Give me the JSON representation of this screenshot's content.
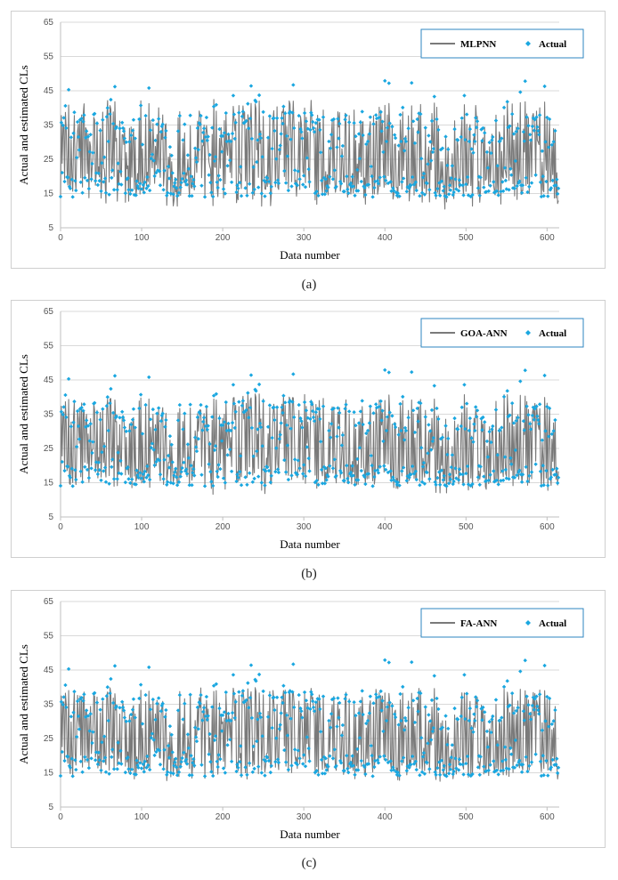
{
  "captions": [
    "(a)",
    "(b)",
    "(c)"
  ],
  "colors": {
    "model_line": "#7a7a7a",
    "actual_points": "#1aa7e0",
    "grid": "#d9d9d9",
    "legend_border": "#2e86c1"
  },
  "chart_data": [
    {
      "type": "line",
      "xlabel": "Data number",
      "ylabel": "Actual and estimated CLs",
      "xlim": [
        0,
        615
      ],
      "ylim": [
        5,
        65
      ],
      "xticks": [
        0,
        100,
        200,
        300,
        400,
        500,
        600
      ],
      "yticks": [
        5,
        15,
        25,
        35,
        45,
        55,
        65
      ],
      "grid": true,
      "legend_position": "top-right",
      "series": [
        {
          "name": "MLPNN",
          "kind": "line",
          "n_points": 615,
          "range": [
            6.5,
            42.5
          ]
        },
        {
          "name": "Actual",
          "kind": "scatter",
          "n_points": 615,
          "range": [
            11,
            48
          ]
        }
      ]
    },
    {
      "type": "line",
      "xlabel": "Data number",
      "ylabel": "Actual and estimated CLs",
      "xlim": [
        0,
        615
      ],
      "ylim": [
        5,
        65
      ],
      "xticks": [
        0,
        100,
        200,
        300,
        400,
        500,
        600
      ],
      "yticks": [
        5,
        15,
        25,
        35,
        45,
        55,
        65
      ],
      "grid": true,
      "legend_position": "top-right",
      "series": [
        {
          "name": "GOA-ANN",
          "kind": "line",
          "n_points": 615,
          "range": [
            11,
            41
          ]
        },
        {
          "name": "Actual",
          "kind": "scatter",
          "n_points": 615,
          "range": [
            11,
            48
          ]
        }
      ]
    },
    {
      "type": "line",
      "xlabel": "Data number",
      "ylabel": "Actual and estimated CLs",
      "xlim": [
        0,
        615
      ],
      "ylim": [
        5,
        65
      ],
      "xticks": [
        0,
        100,
        200,
        300,
        400,
        500,
        600
      ],
      "yticks": [
        5,
        15,
        25,
        35,
        45,
        55,
        65
      ],
      "grid": true,
      "legend_position": "top-right",
      "series": [
        {
          "name": "FA-ANN",
          "kind": "line",
          "n_points": 615,
          "range": [
            11,
            40
          ]
        },
        {
          "name": "Actual",
          "kind": "scatter",
          "n_points": 615,
          "range": [
            11,
            48
          ]
        }
      ]
    }
  ]
}
